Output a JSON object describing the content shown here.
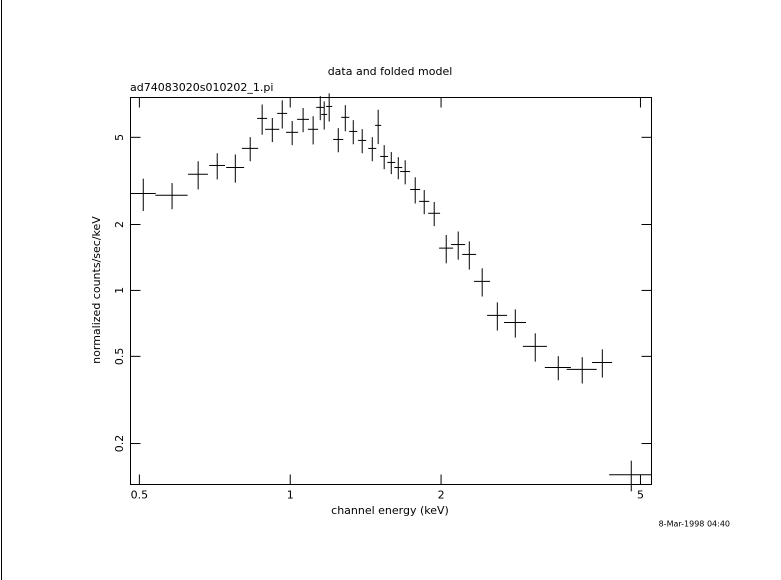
{
  "chart_data": {
    "type": "errorbar",
    "title": "data and folded model",
    "subtitle": "ad74083020s010202_1.pi",
    "x_label": "channel energy (keV)",
    "y_label": "normalized counts/sec/keV",
    "annotation": "8-Mar-1998 04:40",
    "xscale": "log",
    "yscale": "log",
    "color": "#000000",
    "xlim": [
      0.48,
      5.26
    ],
    "ylim": [
      0.13,
      7.6
    ],
    "xticks": [
      0.5,
      1,
      2,
      5
    ],
    "yticks": [
      0.2,
      0.5,
      1,
      2,
      5
    ],
    "x": [
      0.509,
      0.581,
      0.655,
      0.715,
      0.777,
      0.832,
      0.879,
      0.921,
      0.964,
      1.009,
      1.061,
      1.111,
      1.148,
      1.169,
      1.196,
      1.247,
      1.288,
      1.336,
      1.392,
      1.458,
      1.498,
      1.54,
      1.591,
      1.643,
      1.696,
      1.776,
      1.851,
      1.938,
      2.048,
      2.164,
      2.277,
      2.416,
      2.59,
      2.813,
      3.083,
      3.427,
      3.826,
      4.196,
      4.793
    ],
    "xerr": [
      0.03,
      0.043,
      0.03,
      0.026,
      0.032,
      0.031,
      0.02,
      0.03,
      0.022,
      0.028,
      0.029,
      0.026,
      0.021,
      0.016,
      0.017,
      0.029,
      0.024,
      0.025,
      0.026,
      0.027,
      0.021,
      0.028,
      0.029,
      0.03,
      0.039,
      0.041,
      0.043,
      0.053,
      0.066,
      0.07,
      0.073,
      0.089,
      0.119,
      0.142,
      0.17,
      0.205,
      0.264,
      0.193,
      0.463
    ],
    "values": [
      2.77,
      2.72,
      3.39,
      3.72,
      3.64,
      4.45,
      6.1,
      5.44,
      6.43,
      5.27,
      6.04,
      5.44,
      6.85,
      6.36,
      6.92,
      4.89,
      6.17,
      5.32,
      4.84,
      4.45,
      5.67,
      4.09,
      3.84,
      3.64,
      3.49,
      2.89,
      2.55,
      2.25,
      1.56,
      1.62,
      1.46,
      1.1,
      0.769,
      0.714,
      0.555,
      0.445,
      0.436,
      0.469,
      0.144
    ],
    "yerr": [
      0.466,
      0.372,
      0.499,
      0.508,
      0.536,
      0.561,
      0.962,
      0.686,
      0.946,
      0.665,
      0.762,
      0.801,
      0.864,
      0.936,
      1.019,
      0.617,
      0.843,
      0.671,
      0.611,
      0.561,
      1.013,
      0.516,
      0.444,
      0.421,
      0.44,
      0.395,
      0.322,
      0.284,
      0.23,
      0.238,
      0.215,
      0.162,
      0.113,
      0.105,
      0.082,
      0.056,
      0.06,
      0.069,
      0.023
    ]
  }
}
